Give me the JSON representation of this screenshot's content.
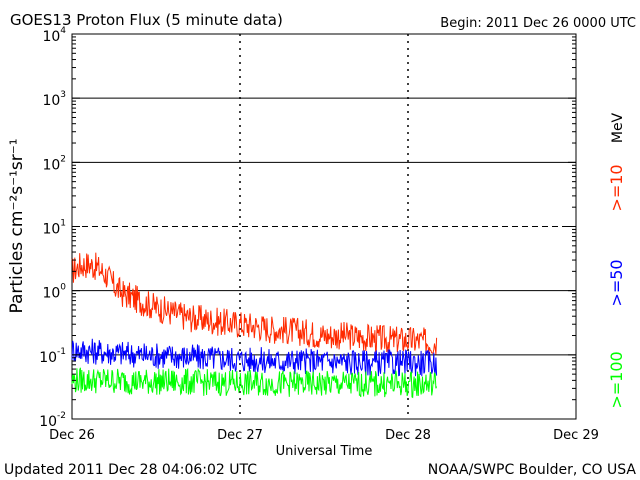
{
  "header": {
    "title": "GOES13 Proton Flux (5 minute data)",
    "begin": "Begin: 2011 Dec 26 0000 UTC"
  },
  "footer": {
    "updated": "Updated 2011 Dec 28 04:06:02 UTC",
    "source": "NOAA/SWPC Boulder, CO USA"
  },
  "chart_data": {
    "type": "line",
    "title": "GOES13 Proton Flux (5 minute data)",
    "xlabel": "Universal Time",
    "ylabel": "Particles cm⁻²s⁻¹sr⁻¹",
    "y_scale": "log",
    "ylim": [
      0.01,
      10000
    ],
    "xlim_days": [
      26,
      29
    ],
    "x_ticks": [
      "Dec 26",
      "Dec 27",
      "Dec 28",
      "Dec 29"
    ],
    "y_ticks": [
      {
        "base": "10",
        "exp": "-2"
      },
      {
        "base": "10",
        "exp": "-1"
      },
      {
        "base": "10",
        "exp": "0"
      },
      {
        "base": "10",
        "exp": "1"
      },
      {
        "base": "10",
        "exp": "2"
      },
      {
        "base": "10",
        "exp": "3"
      },
      {
        "base": "10",
        "exp": "4"
      }
    ],
    "grid": "solid horizontal at decades, dashed at 10, dashed vertical at day boundaries",
    "legend_placement": "right (vertical)",
    "legend_unit": "MeV",
    "series": [
      {
        "name": ">=10",
        "color": "#ff2a00",
        "x": [
          26.0,
          26.05,
          26.1,
          26.15,
          26.2,
          26.25,
          26.3,
          26.35,
          26.4,
          26.5,
          26.6,
          26.7,
          26.8,
          26.9,
          27.0,
          27.1,
          27.2,
          27.3,
          27.4,
          27.5,
          27.6,
          27.7,
          27.8,
          27.9,
          28.0,
          28.1,
          28.17
        ],
        "values": [
          2.0,
          2.5,
          2.6,
          2.3,
          1.8,
          1.2,
          0.9,
          0.8,
          0.7,
          0.55,
          0.45,
          0.38,
          0.35,
          0.32,
          0.3,
          0.28,
          0.25,
          0.24,
          0.22,
          0.2,
          0.2,
          0.19,
          0.18,
          0.17,
          0.17,
          0.16,
          0.16
        ]
      },
      {
        "name": ">=50",
        "color": "#0000ff",
        "x": [
          26.0,
          26.2,
          26.4,
          26.6,
          26.8,
          27.0,
          27.2,
          27.4,
          27.6,
          27.8,
          28.0,
          28.17
        ],
        "values": [
          0.12,
          0.11,
          0.1,
          0.095,
          0.09,
          0.085,
          0.08,
          0.08,
          0.078,
          0.075,
          0.075,
          0.075
        ]
      },
      {
        "name": ">=100",
        "color": "#00ff00",
        "x": [
          26.0,
          26.2,
          26.4,
          26.6,
          26.8,
          27.0,
          27.2,
          27.4,
          27.6,
          27.8,
          28.0,
          28.17
        ],
        "values": [
          0.04,
          0.04,
          0.038,
          0.038,
          0.037,
          0.036,
          0.036,
          0.035,
          0.035,
          0.035,
          0.035,
          0.035
        ]
      }
    ]
  }
}
